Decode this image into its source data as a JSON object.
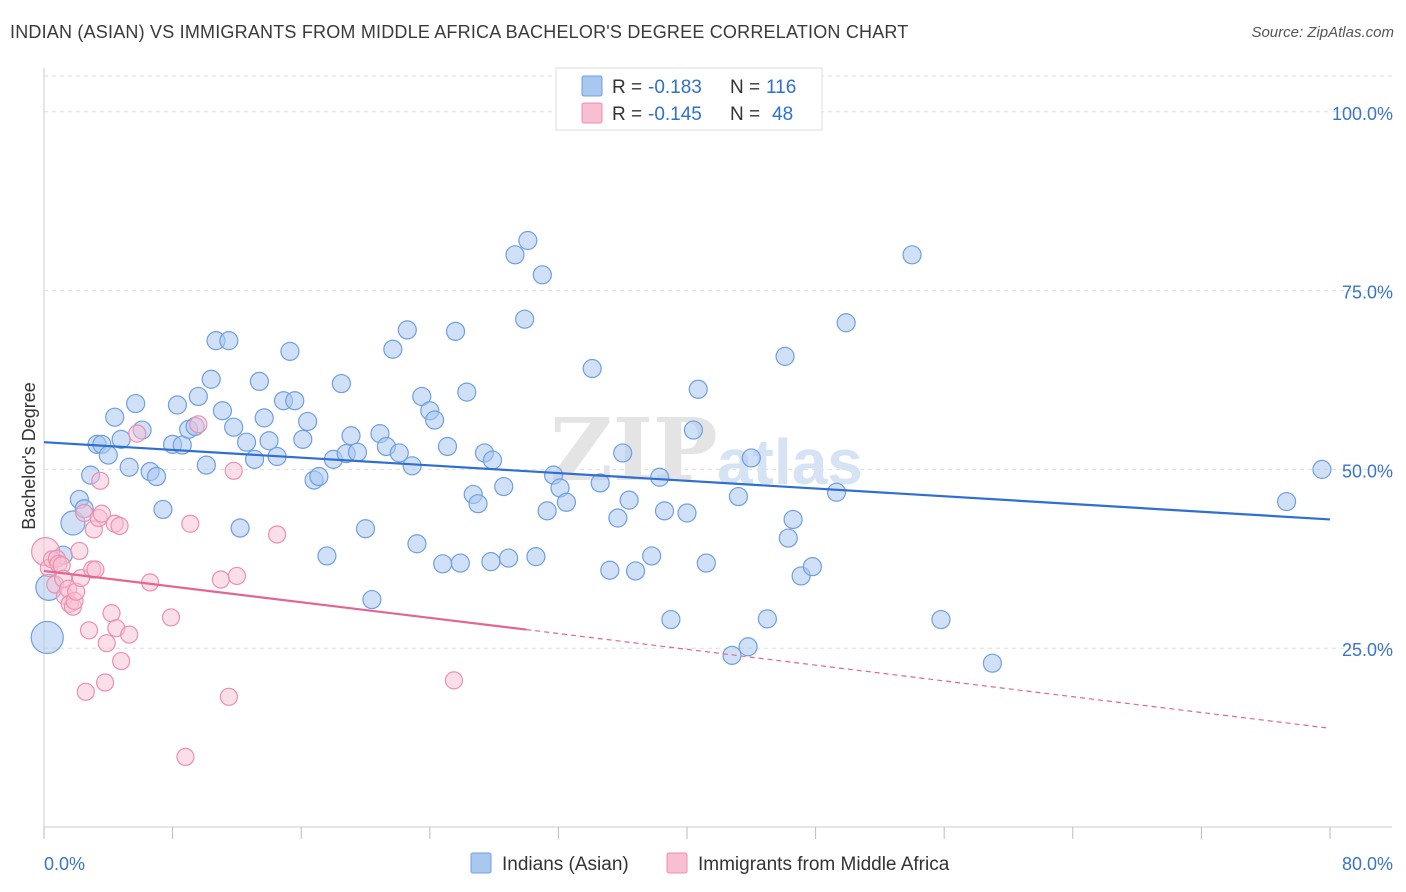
{
  "header": {
    "title": "INDIAN (ASIAN) VS IMMIGRANTS FROM MIDDLE AFRICA BACHELOR'S DEGREE CORRELATION CHART",
    "source": "Source: ZipAtlas.com"
  },
  "watermark": {
    "zip": "ZIP",
    "atlas": "atlas"
  },
  "colors": {
    "blue_fill": "#a9c8f0",
    "blue_stroke": "#6f9fe0",
    "blue_line": "#2f6fd0",
    "pink_fill": "#f7bfd1",
    "pink_stroke": "#ec8fb0",
    "pink_line": "#e2668f",
    "grid": "#dddddd",
    "axis_text": "#3a74c9"
  },
  "legend": {
    "rows": [
      {
        "r_label": "R =",
        "r_value": "-0.183",
        "n_label": "N =",
        "n_value": "116"
      },
      {
        "r_label": "R =",
        "r_value": "-0.145",
        "n_label": "N =",
        "n_value": "48"
      }
    ]
  },
  "chart_data": {
    "type": "scatter",
    "title": "INDIAN (ASIAN) VS IMMIGRANTS FROM MIDDLE AFRICA BACHELOR'S DEGREE CORRELATION CHART",
    "xlabel": "",
    "ylabel": "Bachelor's Degree",
    "xlim": [
      0,
      80
    ],
    "ylim": [
      0,
      105
    ],
    "x_tick_labels": [
      "0.0%",
      "80.0%"
    ],
    "y_ticks": [
      25,
      50,
      75,
      100
    ],
    "y_tick_labels": [
      "25.0%",
      "50.0%",
      "75.0%",
      "100.0%"
    ],
    "legend_position": "top-center",
    "series": [
      {
        "name": "Indians (Asian)",
        "R": -0.183,
        "N": 116,
        "trend": {
          "x": [
            0,
            80
          ],
          "y": [
            53.8,
            43.0
          ]
        },
        "points": [
          [
            0.2,
            26.5
          ],
          [
            0.3,
            33.5
          ],
          [
            1.2,
            38
          ],
          [
            1.8,
            42.5
          ],
          [
            2.2,
            45.8
          ],
          [
            2.5,
            44.5
          ],
          [
            2.9,
            49.2
          ],
          [
            3.3,
            53.5
          ],
          [
            3.6,
            53.5
          ],
          [
            4.0,
            52.0
          ],
          [
            4.4,
            57.3
          ],
          [
            4.8,
            54.2
          ],
          [
            5.3,
            50.3
          ],
          [
            5.7,
            59.2
          ],
          [
            6.1,
            55.5
          ],
          [
            6.6,
            49.7
          ],
          [
            7.0,
            49.0
          ],
          [
            7.4,
            44.4
          ],
          [
            8.0,
            53.5
          ],
          [
            8.3,
            59.0
          ],
          [
            8.6,
            53.4
          ],
          [
            9.0,
            55.6
          ],
          [
            9.4,
            56.0
          ],
          [
            9.6,
            60.2
          ],
          [
            10.1,
            50.6
          ],
          [
            10.4,
            62.6
          ],
          [
            10.7,
            68.0
          ],
          [
            11.1,
            58.2
          ],
          [
            11.5,
            68.0
          ],
          [
            11.8,
            55.9
          ],
          [
            12.2,
            41.8
          ],
          [
            12.6,
            53.8
          ],
          [
            13.1,
            51.4
          ],
          [
            13.4,
            62.3
          ],
          [
            13.7,
            57.2
          ],
          [
            14.0,
            54.0
          ],
          [
            14.5,
            51.8
          ],
          [
            14.9,
            59.6
          ],
          [
            15.3,
            66.5
          ],
          [
            15.6,
            59.6
          ],
          [
            16.1,
            54.2
          ],
          [
            16.4,
            56.7
          ],
          [
            16.8,
            48.5
          ],
          [
            17.1,
            49.0
          ],
          [
            17.6,
            37.9
          ],
          [
            18.0,
            51.4
          ],
          [
            18.5,
            62.0
          ],
          [
            18.8,
            52.2
          ],
          [
            19.1,
            54.7
          ],
          [
            19.5,
            52.4
          ],
          [
            20.0,
            41.7
          ],
          [
            20.4,
            31.8
          ],
          [
            20.9,
            55.0
          ],
          [
            21.3,
            53.2
          ],
          [
            21.7,
            66.8
          ],
          [
            22.1,
            52.3
          ],
          [
            22.6,
            69.5
          ],
          [
            22.9,
            50.5
          ],
          [
            23.2,
            39.6
          ],
          [
            23.5,
            60.2
          ],
          [
            24.0,
            58.2
          ],
          [
            24.3,
            56.9
          ],
          [
            24.8,
            36.8
          ],
          [
            25.1,
            53.2
          ],
          [
            25.6,
            69.3
          ],
          [
            25.9,
            36.9
          ],
          [
            26.3,
            60.8
          ],
          [
            26.7,
            46.5
          ],
          [
            27.0,
            45.2
          ],
          [
            27.4,
            52.3
          ],
          [
            27.9,
            51.3
          ],
          [
            27.8,
            37.1
          ],
          [
            28.6,
            47.6
          ],
          [
            28.9,
            37.6
          ],
          [
            29.3,
            80.0
          ],
          [
            29.9,
            71.0
          ],
          [
            30.1,
            82.0
          ],
          [
            30.6,
            37.8
          ],
          [
            31.0,
            77.2
          ],
          [
            31.3,
            44.2
          ],
          [
            31.7,
            49.2
          ],
          [
            32.1,
            47.4
          ],
          [
            32.5,
            45.4
          ],
          [
            34.1,
            64.1
          ],
          [
            34.6,
            48.1
          ],
          [
            35.2,
            35.9
          ],
          [
            35.7,
            43.2
          ],
          [
            36.0,
            52.3
          ],
          [
            36.4,
            45.7
          ],
          [
            36.8,
            35.8
          ],
          [
            37.8,
            37.9
          ],
          [
            38.3,
            48.9
          ],
          [
            38.6,
            44.2
          ],
          [
            39.0,
            29.0
          ],
          [
            40.0,
            43.9
          ],
          [
            40.4,
            55.5
          ],
          [
            40.7,
            61.2
          ],
          [
            41.2,
            36.9
          ],
          [
            42.8,
            24.0
          ],
          [
            43.2,
            46.2
          ],
          [
            43.8,
            25.2
          ],
          [
            44.0,
            51.6
          ],
          [
            45.0,
            29.1
          ],
          [
            46.1,
            65.8
          ],
          [
            46.3,
            40.4
          ],
          [
            46.6,
            43.0
          ],
          [
            47.1,
            35.1
          ],
          [
            47.8,
            36.4
          ],
          [
            49.3,
            46.8
          ],
          [
            49.9,
            70.5
          ],
          [
            54.0,
            80.0
          ],
          [
            55.8,
            29.0
          ],
          [
            59.0,
            22.9
          ],
          [
            77.3,
            45.5
          ],
          [
            79.5,
            50.0
          ]
        ]
      },
      {
        "name": "Immigrants from Middle Africa",
        "R": -0.145,
        "N": 48,
        "trend": {
          "x": [
            0,
            30
          ],
          "y": [
            35.8,
            27.6
          ]
        },
        "trend_dashed": {
          "x": [
            30,
            80
          ],
          "y": [
            27.6,
            13.8
          ]
        },
        "points": [
          [
            0.1,
            38.5
          ],
          [
            0.3,
            36.2
          ],
          [
            0.5,
            37.4
          ],
          [
            0.7,
            33.9
          ],
          [
            0.8,
            37.5
          ],
          [
            0.9,
            36.8
          ],
          [
            1.1,
            36.6
          ],
          [
            1.2,
            34.7
          ],
          [
            1.3,
            32.3
          ],
          [
            1.5,
            33.3
          ],
          [
            1.6,
            31.2
          ],
          [
            1.8,
            30.8
          ],
          [
            1.9,
            31.6
          ],
          [
            2.0,
            32.9
          ],
          [
            2.2,
            38.6
          ],
          [
            2.3,
            34.8
          ],
          [
            2.5,
            43.9
          ],
          [
            2.6,
            18.9
          ],
          [
            2.8,
            27.5
          ],
          [
            3.0,
            36.0
          ],
          [
            3.1,
            41.6
          ],
          [
            3.2,
            36.0
          ],
          [
            3.4,
            43.2
          ],
          [
            3.5,
            48.4
          ],
          [
            3.6,
            43.8
          ],
          [
            3.8,
            20.2
          ],
          [
            3.9,
            25.7
          ],
          [
            4.2,
            29.9
          ],
          [
            4.4,
            42.4
          ],
          [
            4.5,
            27.8
          ],
          [
            4.7,
            42.1
          ],
          [
            4.8,
            23.2
          ],
          [
            5.3,
            26.9
          ],
          [
            5.8,
            55.0
          ],
          [
            6.6,
            34.2
          ],
          [
            7.9,
            29.3
          ],
          [
            8.8,
            9.8
          ],
          [
            9.1,
            42.4
          ],
          [
            9.6,
            56.3
          ],
          [
            11.0,
            34.6
          ],
          [
            11.5,
            18.2
          ],
          [
            11.8,
            49.8
          ],
          [
            12.0,
            35.1
          ],
          [
            14.5,
            40.9
          ],
          [
            25.5,
            20.5
          ]
        ]
      }
    ]
  },
  "bottom_legend": {
    "items": [
      "Indians (Asian)",
      "Immigrants from Middle Africa"
    ]
  }
}
